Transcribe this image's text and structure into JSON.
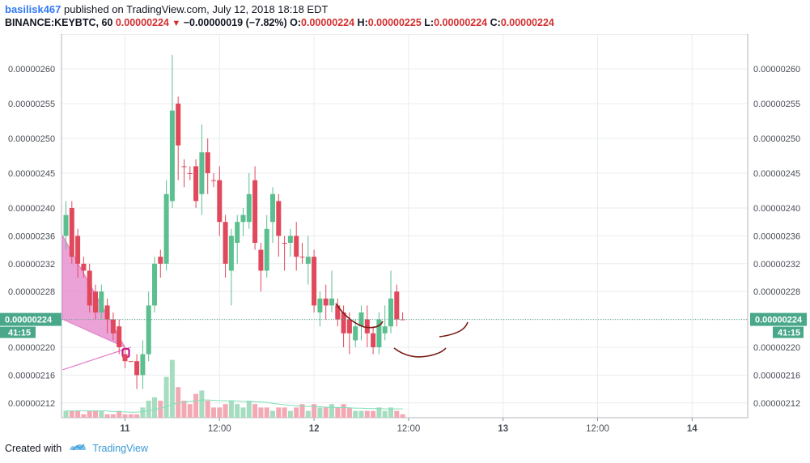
{
  "header": {
    "author": "basilisk467",
    "published": "published on TradingView.com, July 12, 2018 18:18 EDT",
    "symbol": "BINANCE:KEYBTC, 60",
    "last": "0.00000224",
    "change": "−0.00000019 (−7.82%)",
    "o_label": "O:",
    "o_value": "0.00000224",
    "h_label": "H:",
    "h_value": "0.00000225",
    "l_label": "L:",
    "l_value": "0.00000224",
    "c_label": "C:",
    "c_value": "0.00000224"
  },
  "footer": {
    "created_with": "Created with",
    "brand": "TradingView"
  },
  "colors": {
    "up": "#5bbf8f",
    "down": "#e0485c",
    "vol_up": "#a6dcc0",
    "vol_down": "#f3a9b3",
    "ma": "#7fe0b8",
    "grid": "#e9ecef",
    "price_line": "#4aa88a",
    "pattern": "#e27bc6",
    "curve": "#7a1a12"
  },
  "chart_data": {
    "type": "candlestick",
    "y_ticks": [
      "0.00000260",
      "0.00000255",
      "0.00000250",
      "0.00000245",
      "0.00000240",
      "0.00000236",
      "0.00000232",
      "0.00000228",
      "0.00000224",
      "0.00000220",
      "0.00000216",
      "0.00000212"
    ],
    "y_tick_values": [
      260,
      255,
      250,
      245,
      240,
      236,
      232,
      228,
      224,
      220,
      216,
      212
    ],
    "y_scale_unit": "1e-8 BTC",
    "x_ticks": [
      "11",
      "12:00",
      "12",
      "12:00",
      "13",
      "12:00",
      "14"
    ],
    "x_tick_bar_index": [
      10,
      26,
      42,
      58,
      74,
      90,
      106
    ],
    "current_price_label": "0.00000224",
    "countdown_label": "41:15",
    "candles": [
      [
        239,
        236,
        241,
        234,
        1
      ],
      [
        240,
        233,
        241,
        232,
        0
      ],
      [
        236,
        232,
        237,
        230,
        0
      ],
      [
        232,
        231,
        233,
        230,
        0
      ],
      [
        231,
        226,
        232,
        225,
        0
      ],
      [
        228,
        225,
        229,
        224,
        0
      ],
      [
        225,
        228,
        229,
        224,
        1
      ],
      [
        226,
        224,
        227,
        222,
        0
      ],
      [
        224,
        222,
        225,
        221,
        0
      ],
      [
        223,
        220,
        224,
        219,
        0
      ],
      [
        219,
        218,
        220,
        217,
        0
      ],
      [
        218,
        218,
        218,
        218,
        0
      ],
      [
        218,
        216,
        219,
        214,
        0
      ],
      [
        216,
        219,
        221,
        214,
        1
      ],
      [
        219,
        226,
        228,
        218,
        1
      ],
      [
        226,
        232,
        233,
        225,
        1
      ],
      [
        233,
        232,
        234,
        230,
        0
      ],
      [
        232,
        242,
        244,
        231,
        1
      ],
      [
        241,
        254,
        262,
        240,
        1
      ],
      [
        255,
        249,
        256,
        244,
        0
      ],
      [
        246,
        246,
        247,
        243,
        0
      ],
      [
        245,
        245,
        246,
        244,
        0
      ],
      [
        246,
        241,
        247,
        240,
        0
      ],
      [
        242,
        248,
        252,
        239,
        1
      ],
      [
        248,
        245,
        250,
        242,
        0
      ],
      [
        244,
        244,
        245,
        243,
        0
      ],
      [
        244,
        238,
        246,
        236,
        0
      ],
      [
        238,
        232,
        239,
        230,
        0
      ],
      [
        231,
        236,
        237,
        226,
        1
      ],
      [
        235,
        238,
        239,
        232,
        1
      ],
      [
        238,
        239,
        240,
        236,
        1
      ],
      [
        238,
        242,
        245,
        237,
        1
      ],
      [
        244,
        235,
        246,
        234,
        0
      ],
      [
        234,
        231,
        235,
        228,
        0
      ],
      [
        231,
        237,
        239,
        230,
        1
      ],
      [
        238,
        242,
        243,
        235,
        1
      ],
      [
        241,
        236,
        242,
        233,
        0
      ],
      [
        235,
        235,
        236,
        231,
        0
      ],
      [
        235,
        236,
        237,
        233,
        1
      ],
      [
        236,
        233,
        238,
        231,
        0
      ],
      [
        233,
        233,
        235,
        232,
        0
      ],
      [
        232,
        233,
        236,
        229,
        1
      ],
      [
        233,
        226,
        234,
        225,
        0
      ],
      [
        225,
        227,
        228,
        223,
        1
      ],
      [
        227,
        226,
        229,
        224,
        0
      ],
      [
        226,
        227,
        231,
        225,
        1
      ],
      [
        226,
        224,
        227,
        223,
        0
      ],
      [
        225,
        222,
        226,
        220,
        0
      ],
      [
        224,
        222,
        225,
        219,
        0
      ],
      [
        221,
        223,
        224,
        220,
        1
      ],
      [
        223,
        225,
        226,
        221,
        1
      ],
      [
        224,
        222,
        226,
        220,
        0
      ],
      [
        222,
        220,
        223,
        219,
        0
      ],
      [
        220,
        224,
        225,
        219,
        1
      ],
      [
        222,
        223,
        226,
        221,
        1
      ],
      [
        223,
        227,
        231,
        222,
        1
      ],
      [
        228,
        224,
        229,
        223,
        0
      ],
      [
        224,
        224,
        225,
        224,
        0
      ]
    ],
    "volumes": [
      [
        2,
        1
      ],
      [
        2,
        0
      ],
      [
        2,
        0
      ],
      [
        1,
        0
      ],
      [
        2,
        0
      ],
      [
        2,
        0
      ],
      [
        2,
        1
      ],
      [
        1,
        0
      ],
      [
        1,
        0
      ],
      [
        2,
        0
      ],
      [
        1,
        0
      ],
      [
        1,
        0
      ],
      [
        1,
        0
      ],
      [
        3,
        1
      ],
      [
        5,
        1
      ],
      [
        6,
        1
      ],
      [
        5,
        0
      ],
      [
        12,
        1
      ],
      [
        17,
        1
      ],
      [
        9,
        0
      ],
      [
        5,
        0
      ],
      [
        4,
        0
      ],
      [
        7,
        0
      ],
      [
        8,
        1
      ],
      [
        5,
        0
      ],
      [
        3,
        0
      ],
      [
        3,
        0
      ],
      [
        4,
        0
      ],
      [
        5,
        1
      ],
      [
        4,
        1
      ],
      [
        3,
        1
      ],
      [
        5,
        1
      ],
      [
        4,
        0
      ],
      [
        3,
        0
      ],
      [
        3,
        0
      ],
      [
        2,
        1
      ],
      [
        3,
        0
      ],
      [
        3,
        0
      ],
      [
        2,
        1
      ],
      [
        3,
        0
      ],
      [
        4,
        0
      ],
      [
        2,
        1
      ],
      [
        4,
        0
      ],
      [
        3,
        1
      ],
      [
        3,
        0
      ],
      [
        4,
        1
      ],
      [
        3,
        0
      ],
      [
        4,
        0
      ],
      [
        3,
        0
      ],
      [
        2,
        1
      ],
      [
        2,
        1
      ],
      [
        2,
        0
      ],
      [
        2,
        0
      ],
      [
        3,
        1
      ],
      [
        2,
        1
      ],
      [
        3,
        1
      ],
      [
        2,
        0
      ],
      [
        1,
        0
      ]
    ],
    "volume_ma": [
      2,
      2,
      2,
      2,
      2,
      2,
      2,
      2,
      1.8,
      1.8,
      1.7,
      1.6,
      1.6,
      1.8,
      2,
      2.4,
      2.8,
      3.2,
      4,
      4.3,
      4.6,
      4.8,
      5,
      5.2,
      5.2,
      5.1,
      5,
      5,
      5,
      4.9,
      4.8,
      4.8,
      4.7,
      4.6,
      4.5,
      4.2,
      4,
      3.8,
      3.6,
      3.5,
      3.4,
      3.3,
      3.3,
      3.2,
      3.1,
      3,
      3,
      3,
      2.9,
      2.8,
      2.8,
      2.7,
      2.7,
      2.7,
      2.6,
      2.6,
      2.6,
      2.6
    ]
  }
}
